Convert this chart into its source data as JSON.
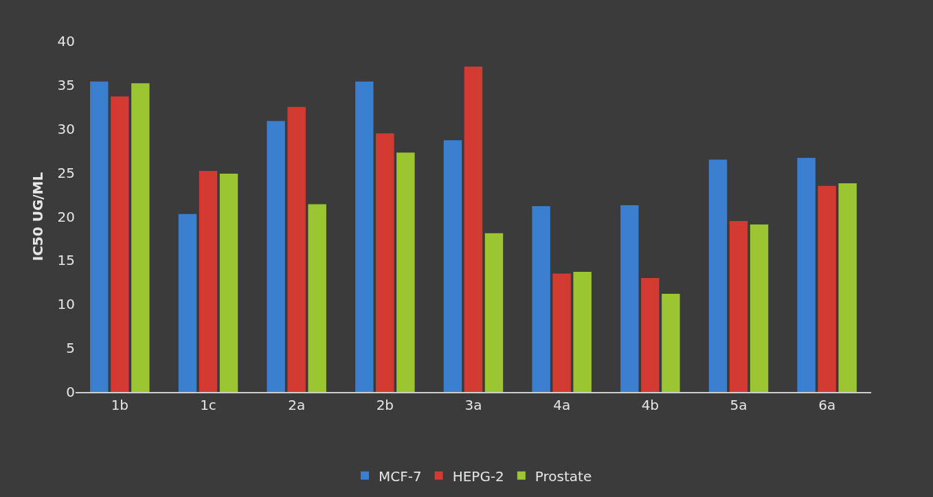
{
  "chart_data": {
    "type": "bar",
    "ylabel": "IC50 UG/ML",
    "categories": [
      "1b",
      "1c",
      "2a",
      "2b",
      "3a",
      "4a",
      "4b",
      "5a",
      "6a"
    ],
    "series": [
      {
        "name": "MCF-7",
        "color": "#3a7fd0",
        "values": [
          35.4,
          20.3,
          30.9,
          35.4,
          28.7,
          21.2,
          21.3,
          26.5,
          26.7
        ]
      },
      {
        "name": "HEPG-2",
        "color": "#d33a32",
        "values": [
          33.7,
          25.2,
          32.5,
          29.5,
          37.1,
          13.5,
          13.0,
          19.5,
          23.5
        ]
      },
      {
        "name": "Prostate",
        "color": "#9cc532",
        "values": [
          35.2,
          24.9,
          21.4,
          27.3,
          18.1,
          13.7,
          11.2,
          19.1,
          23.8
        ]
      }
    ],
    "ylim": [
      0,
      40
    ],
    "yticks": [
      0,
      5,
      10,
      15,
      20,
      25,
      30,
      35,
      40
    ],
    "grid": false,
    "legend": "bottom"
  }
}
